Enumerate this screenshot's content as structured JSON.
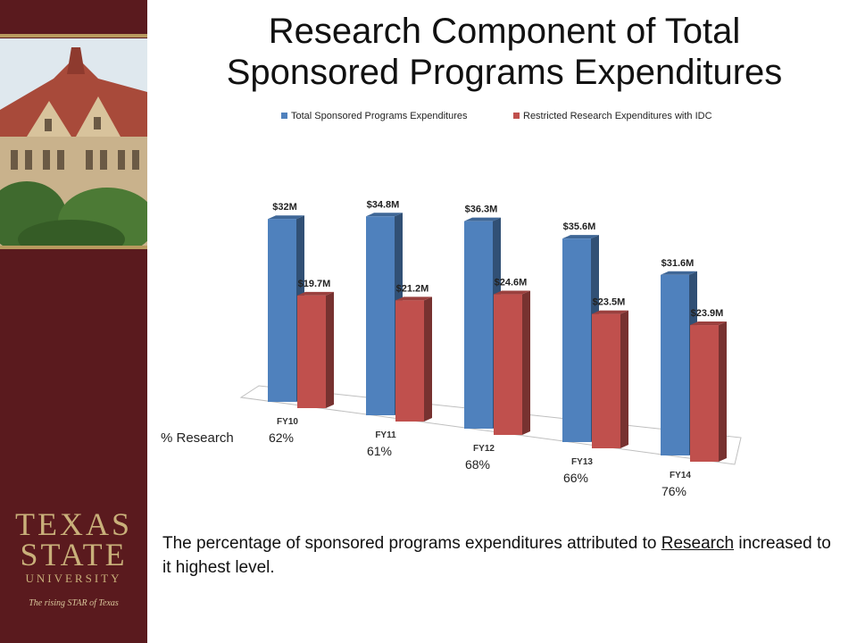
{
  "slide": {
    "title_line1": "Research Component of Total",
    "title_line2": "Sponsored Programs Expenditures",
    "footer_pre": "The percentage of sponsored programs expenditures attributed to ",
    "footer_link": "Research",
    "footer_post": " increased to it highest level."
  },
  "logo": {
    "line1": "TEXAS",
    "line2": "STATE",
    "line3": "UNIVERSITY",
    "tagline": "The rising STAR of Texas"
  },
  "colors": {
    "sidebar": "#5a1a1e",
    "gold": "#c9b07a",
    "blue": "#4f81bd",
    "red": "#c0504d"
  },
  "chart_data": {
    "type": "bar",
    "categories": [
      "FY10",
      "FY11",
      "FY12",
      "FY13",
      "FY14"
    ],
    "series": [
      {
        "name": "Total Sponsored Programs Expenditures",
        "values": [
          32,
          34.8,
          36.3,
          35.6,
          31.6
        ],
        "labels": [
          "$32M",
          "$34.8M",
          "$36.3M",
          "$35.6M",
          "$31.6M"
        ],
        "color": "#4f81bd"
      },
      {
        "name": "Restricted Research Expenditures with IDC",
        "values": [
          19.7,
          21.2,
          24.6,
          23.5,
          23.9
        ],
        "labels": [
          "$19.7M",
          "$21.2M",
          "$24.6M",
          "$23.5M",
          "$23.9M"
        ],
        "color": "#c0504d"
      }
    ],
    "percent_label": "% Research",
    "percent_research": [
      "62%",
      "61%",
      "68%",
      "66%",
      "76%"
    ],
    "legend_position": "top",
    "ylim": [
      0,
      40
    ],
    "style": "3d-column"
  }
}
